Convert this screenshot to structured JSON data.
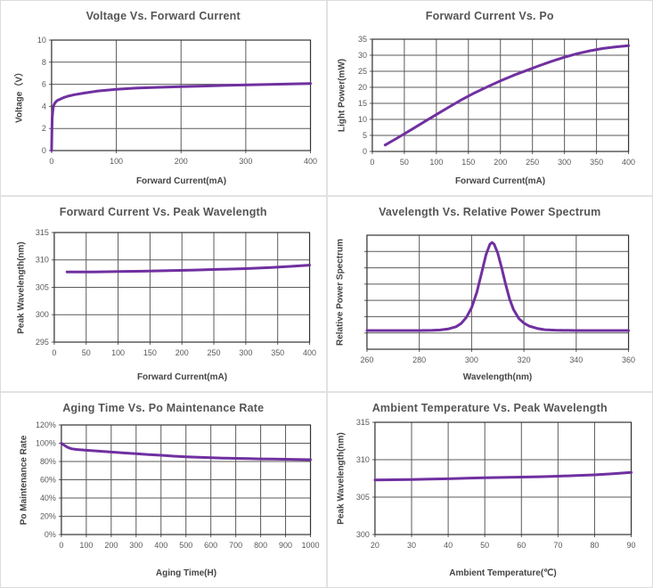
{
  "page": {
    "background": "#ffffff",
    "divider_color": "#e2e2e2",
    "grid_layout": "2 columns x 3 rows of charts"
  },
  "colors": {
    "curve": "#7030a0",
    "grid_line": "#5a5a5a",
    "plot_border": "#333333",
    "title_text": "#555555",
    "tick_text": "#595959",
    "axis_label_text": "#454545"
  },
  "chart_data": [
    {
      "type": "line",
      "title": "Voltage Vs. Forward Current",
      "xlabel": "Forward Current(mA)",
      "ylabel": "Voltage（V）",
      "xlim": [
        0,
        400
      ],
      "ylim": [
        0,
        10
      ],
      "xticks": [
        0,
        100,
        200,
        300,
        400
      ],
      "xtick_labels": [
        "0",
        "100",
        "200",
        "300",
        "400"
      ],
      "yticks": [
        0,
        2,
        4,
        6,
        8,
        10
      ],
      "ytick_labels": [
        "0",
        "2",
        "4",
        "6",
        "8",
        "10"
      ],
      "grid": true,
      "legend": null,
      "points": [
        [
          0,
          0
        ],
        [
          0.5,
          2.0
        ],
        [
          1,
          3.0
        ],
        [
          2,
          3.7
        ],
        [
          3,
          4.05
        ],
        [
          5,
          4.3
        ],
        [
          8,
          4.5
        ],
        [
          12,
          4.62
        ],
        [
          18,
          4.78
        ],
        [
          25,
          4.92
        ],
        [
          35,
          5.06
        ],
        [
          50,
          5.2
        ],
        [
          70,
          5.38
        ],
        [
          100,
          5.55
        ],
        [
          130,
          5.65
        ],
        [
          160,
          5.72
        ],
        [
          200,
          5.78
        ],
        [
          240,
          5.85
        ],
        [
          280,
          5.92
        ],
        [
          320,
          5.97
        ],
        [
          360,
          6.02
        ],
        [
          400,
          6.07
        ]
      ]
    },
    {
      "type": "line",
      "title": "Forward Current Vs. Po",
      "xlabel": "Forward Current(mA)",
      "ylabel": "Light Power(mW)",
      "xlim": [
        0,
        400
      ],
      "ylim": [
        0,
        35
      ],
      "xticks": [
        0,
        50,
        100,
        150,
        200,
        250,
        300,
        350,
        400
      ],
      "xtick_labels": [
        "0",
        "50",
        "100",
        "150",
        "200",
        "250",
        "300",
        "350",
        "400"
      ],
      "yticks": [
        0,
        5,
        10,
        15,
        20,
        25,
        30,
        35
      ],
      "ytick_labels": [
        "0",
        "5",
        "10",
        "15",
        "20",
        "25",
        "30",
        "35"
      ],
      "grid": true,
      "legend": null,
      "points": [
        [
          20,
          2.0
        ],
        [
          40,
          4.3
        ],
        [
          60,
          6.7
        ],
        [
          80,
          9.1
        ],
        [
          100,
          11.5
        ],
        [
          120,
          13.9
        ],
        [
          140,
          16.2
        ],
        [
          160,
          18.3
        ],
        [
          180,
          20.2
        ],
        [
          200,
          22.0
        ],
        [
          220,
          23.7
        ],
        [
          240,
          25.2
        ],
        [
          260,
          26.7
        ],
        [
          280,
          28.1
        ],
        [
          300,
          29.4
        ],
        [
          320,
          30.5
        ],
        [
          340,
          31.4
        ],
        [
          360,
          32.1
        ],
        [
          380,
          32.6
        ],
        [
          400,
          33.0
        ]
      ]
    },
    {
      "type": "line",
      "title": "Forward Current Vs. Peak Wavelength",
      "xlabel": "Forward Current(mA)",
      "ylabel": "Peak Wavelength(nm)",
      "xlim": [
        0,
        400
      ],
      "ylim": [
        295,
        315
      ],
      "xticks": [
        0,
        50,
        100,
        150,
        200,
        250,
        300,
        350,
        400
      ],
      "xtick_labels": [
        "0",
        "50",
        "100",
        "150",
        "200",
        "250",
        "300",
        "350",
        "400"
      ],
      "yticks": [
        295,
        300,
        305,
        310,
        315
      ],
      "ytick_labels": [
        "295",
        "300",
        "305",
        "310",
        "315"
      ],
      "grid": true,
      "legend": null,
      "points": [
        [
          20,
          307.8
        ],
        [
          60,
          307.82
        ],
        [
          100,
          307.88
        ],
        [
          140,
          307.95
        ],
        [
          180,
          308.05
        ],
        [
          220,
          308.15
        ],
        [
          260,
          308.28
        ],
        [
          300,
          308.42
        ],
        [
          340,
          308.62
        ],
        [
          370,
          308.82
        ],
        [
          400,
          309.05
        ]
      ]
    },
    {
      "type": "line",
      "title": "Vavelength Vs. Relative Power Spectrum",
      "xlabel": "Wavelength(nm)",
      "ylabel": "Relative Power Spectrum",
      "xlim": [
        260,
        360
      ],
      "ylim": [
        0,
        7
      ],
      "xticks": [
        260,
        280,
        300,
        320,
        340,
        360
      ],
      "xtick_labels": [
        "260",
        "280",
        "300",
        "320",
        "340",
        "360"
      ],
      "yticks": [
        1,
        2,
        3,
        4,
        5,
        6
      ],
      "ytick_labels": [],
      "grid": true,
      "legend": null,
      "points": [
        [
          260,
          1.15
        ],
        [
          270,
          1.15
        ],
        [
          280,
          1.15
        ],
        [
          285,
          1.16
        ],
        [
          288,
          1.18
        ],
        [
          291,
          1.24
        ],
        [
          294,
          1.38
        ],
        [
          296,
          1.58
        ],
        [
          298,
          1.95
        ],
        [
          300,
          2.55
        ],
        [
          302,
          3.5
        ],
        [
          304,
          4.8
        ],
        [
          305.5,
          5.8
        ],
        [
          307,
          6.45
        ],
        [
          307.8,
          6.55
        ],
        [
          308.6,
          6.45
        ],
        [
          310,
          5.9
        ],
        [
          311.5,
          5.0
        ],
        [
          313,
          4.0
        ],
        [
          314.5,
          3.1
        ],
        [
          316,
          2.45
        ],
        [
          318,
          1.9
        ],
        [
          320,
          1.6
        ],
        [
          322,
          1.42
        ],
        [
          325,
          1.28
        ],
        [
          328,
          1.2
        ],
        [
          332,
          1.17
        ],
        [
          340,
          1.15
        ],
        [
          350,
          1.15
        ],
        [
          360,
          1.15
        ]
      ]
    },
    {
      "type": "line",
      "title": "Aging Time Vs. Po Maintenance Rate",
      "xlabel": "Aging Time(H)",
      "ylabel": "Po Maintenance Rate",
      "xlim": [
        0,
        1000
      ],
      "ylim": [
        0,
        120
      ],
      "xticks": [
        0,
        100,
        200,
        300,
        400,
        500,
        600,
        700,
        800,
        900,
        1000
      ],
      "xtick_labels": [
        "0",
        "100",
        "200",
        "300",
        "400",
        "500",
        "600",
        "700",
        "800",
        "900",
        "1000"
      ],
      "yticks": [
        0,
        20,
        40,
        60,
        80,
        100,
        120
      ],
      "ytick_labels": [
        "0%",
        "20%",
        "40%",
        "60%",
        "80%",
        "100%",
        "120%"
      ],
      "grid": true,
      "legend": null,
      "points": [
        [
          0,
          100
        ],
        [
          10,
          98
        ],
        [
          25,
          95.5
        ],
        [
          40,
          94
        ],
        [
          60,
          93.2
        ],
        [
          100,
          92.3
        ],
        [
          150,
          91.3
        ],
        [
          200,
          90.3
        ],
        [
          250,
          89.4
        ],
        [
          300,
          88.5
        ],
        [
          350,
          87.6
        ],
        [
          400,
          86.8
        ],
        [
          450,
          85.9
        ],
        [
          500,
          85.2
        ],
        [
          550,
          84.6
        ],
        [
          600,
          84.1
        ],
        [
          650,
          83.7
        ],
        [
          700,
          83.4
        ],
        [
          750,
          83.1
        ],
        [
          800,
          82.8
        ],
        [
          850,
          82.6
        ],
        [
          900,
          82.4
        ],
        [
          950,
          82.2
        ],
        [
          1000,
          82.0
        ]
      ]
    },
    {
      "type": "line",
      "title": "Ambient Temperature Vs. Peak Wavelength",
      "xlabel": "Ambient Temperature(℃)",
      "ylabel": "Peak Wavelength(nm)",
      "xlim": [
        20,
        90
      ],
      "ylim": [
        300,
        315
      ],
      "xticks": [
        20,
        30,
        40,
        50,
        60,
        70,
        80,
        90
      ],
      "xtick_labels": [
        "20",
        "30",
        "40",
        "50",
        "60",
        "70",
        "80",
        "90"
      ],
      "yticks": [
        300,
        305,
        310,
        315
      ],
      "ytick_labels": [
        "300",
        "305",
        "310",
        "315"
      ],
      "grid": true,
      "legend": null,
      "points": [
        [
          20,
          307.3
        ],
        [
          25,
          307.32
        ],
        [
          30,
          307.36
        ],
        [
          35,
          307.4
        ],
        [
          40,
          307.45
        ],
        [
          45,
          307.52
        ],
        [
          50,
          307.58
        ],
        [
          55,
          307.63
        ],
        [
          60,
          307.68
        ],
        [
          65,
          307.73
        ],
        [
          70,
          307.8
        ],
        [
          75,
          307.88
        ],
        [
          80,
          307.98
        ],
        [
          85,
          308.12
        ],
        [
          90,
          308.3
        ]
      ]
    }
  ]
}
